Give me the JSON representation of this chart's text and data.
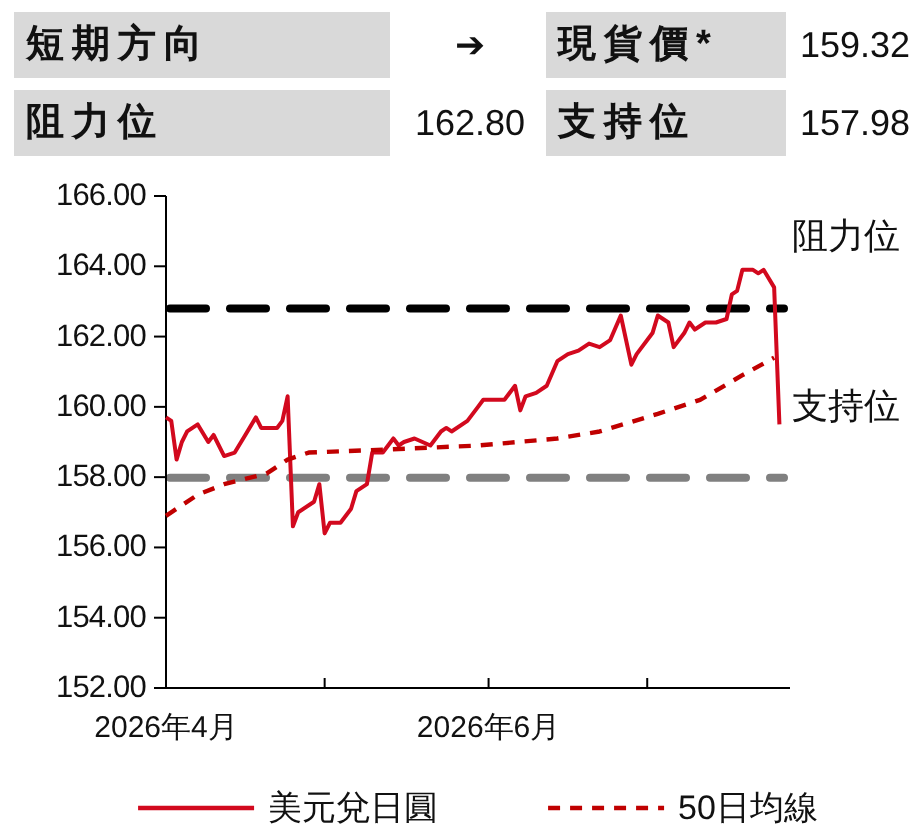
{
  "chart_data": [
    {
      "type": "other",
      "annotations": [
        "短期方向",
        "➔",
        "現貨價*",
        "159.32",
        "阻力位",
        "162.80",
        "支持位",
        "157.98"
      ]
    },
    {
      "type": "line",
      "legend": "bottom",
      "xlim": [
        "2026-04-01",
        "2026-07-28"
      ],
      "xticks": [
        {
          "value": "2026-04-01",
          "label": "2026年4月"
        },
        {
          "value": "2026-05-01",
          "label": null
        },
        {
          "value": "2026-06-01",
          "label": "2026年6月"
        },
        {
          "value": "2026-07-01",
          "label": null
        }
      ],
      "ylim": [
        152,
        166
      ],
      "yticks": [
        {
          "value": 152,
          "label": "152.00"
        },
        {
          "value": 154,
          "label": "154.00"
        },
        {
          "value": 156,
          "label": "156.00"
        },
        {
          "value": 158,
          "label": "158.00"
        },
        {
          "value": 160,
          "label": "160.00"
        },
        {
          "value": 162,
          "label": "162.00"
        },
        {
          "value": 164,
          "label": "164.00"
        },
        {
          "value": 166,
          "label": "166.00"
        }
      ],
      "ref_lines": [
        {
          "axis": "y",
          "value": 162.8,
          "label": "阻力位",
          "color": "#000000",
          "line_style": "dashed"
        },
        {
          "axis": "y",
          "value": 157.98,
          "label": "支持位",
          "color": "#808080",
          "line_style": "dashed"
        }
      ],
      "series": [
        {
          "name": "美元兌日圓",
          "color": "#d2091e",
          "line_style": "solid",
          "x": [
            "2026-04-01",
            "2026-04-02",
            "2026-04-03",
            "2026-04-04",
            "2026-04-05",
            "2026-04-07",
            "2026-04-09",
            "2026-04-10",
            "2026-04-12",
            "2026-04-14",
            "2026-04-16",
            "2026-04-18",
            "2026-04-19",
            "2026-04-22",
            "2026-04-23",
            "2026-04-24",
            "2026-04-25",
            "2026-04-26",
            "2026-04-29",
            "2026-04-30",
            "2026-05-01",
            "2026-05-02",
            "2026-05-04",
            "2026-05-06",
            "2026-05-07",
            "2026-05-09",
            "2026-05-10",
            "2026-05-12",
            "2026-05-14",
            "2026-05-15",
            "2026-05-16",
            "2026-05-18",
            "2026-05-21",
            "2026-05-23",
            "2026-05-24",
            "2026-05-25",
            "2026-05-28",
            "2026-05-30",
            "2026-05-31",
            "2026-06-04",
            "2026-06-06",
            "2026-06-07",
            "2026-06-08",
            "2026-06-10",
            "2026-06-12",
            "2026-06-14",
            "2026-06-16",
            "2026-06-18",
            "2026-06-20",
            "2026-06-22",
            "2026-06-24",
            "2026-06-26",
            "2026-06-28",
            "2026-06-29",
            "2026-07-02",
            "2026-07-03",
            "2026-07-05",
            "2026-07-06",
            "2026-07-08",
            "2026-07-09",
            "2026-07-10",
            "2026-07-12",
            "2026-07-14",
            "2026-07-16",
            "2026-07-17",
            "2026-07-18",
            "2026-07-19",
            "2026-07-21",
            "2026-07-22",
            "2026-07-23",
            "2026-07-25",
            "2026-07-26"
          ],
          "values": [
            159.7,
            159.6,
            158.5,
            159.0,
            159.3,
            159.5,
            159.0,
            159.2,
            158.6,
            158.7,
            159.2,
            159.7,
            159.4,
            159.4,
            159.6,
            160.3,
            156.6,
            157.0,
            157.3,
            157.8,
            156.4,
            156.7,
            156.7,
            157.1,
            157.6,
            157.8,
            158.7,
            158.7,
            159.1,
            158.9,
            159.0,
            159.1,
            158.9,
            159.3,
            159.4,
            159.3,
            159.6,
            160.0,
            160.2,
            160.2,
            160.6,
            159.9,
            160.3,
            160.4,
            160.6,
            161.3,
            161.5,
            161.6,
            161.8,
            161.7,
            161.9,
            162.6,
            161.2,
            161.5,
            162.1,
            162.6,
            162.4,
            161.7,
            162.1,
            162.4,
            162.2,
            162.4,
            162.4,
            162.5,
            163.2,
            163.3,
            163.9,
            163.9,
            163.8,
            163.9,
            163.4,
            159.5
          ]
        },
        {
          "name": "50日均線",
          "color": "#c00000",
          "line_style": "dashed",
          "x": [
            "2026-04-01",
            "2026-04-07",
            "2026-04-12",
            "2026-04-20",
            "2026-04-24",
            "2026-04-26",
            "2026-04-28",
            "2026-05-15",
            "2026-05-30",
            "2026-06-14",
            "2026-06-22",
            "2026-07-03",
            "2026-07-11",
            "2026-07-19",
            "2026-07-25"
          ],
          "values": [
            156.9,
            157.5,
            157.8,
            158.1,
            158.5,
            158.6,
            158.7,
            158.8,
            158.9,
            159.1,
            159.3,
            159.8,
            160.2,
            160.9,
            161.4
          ]
        }
      ]
    }
  ]
}
